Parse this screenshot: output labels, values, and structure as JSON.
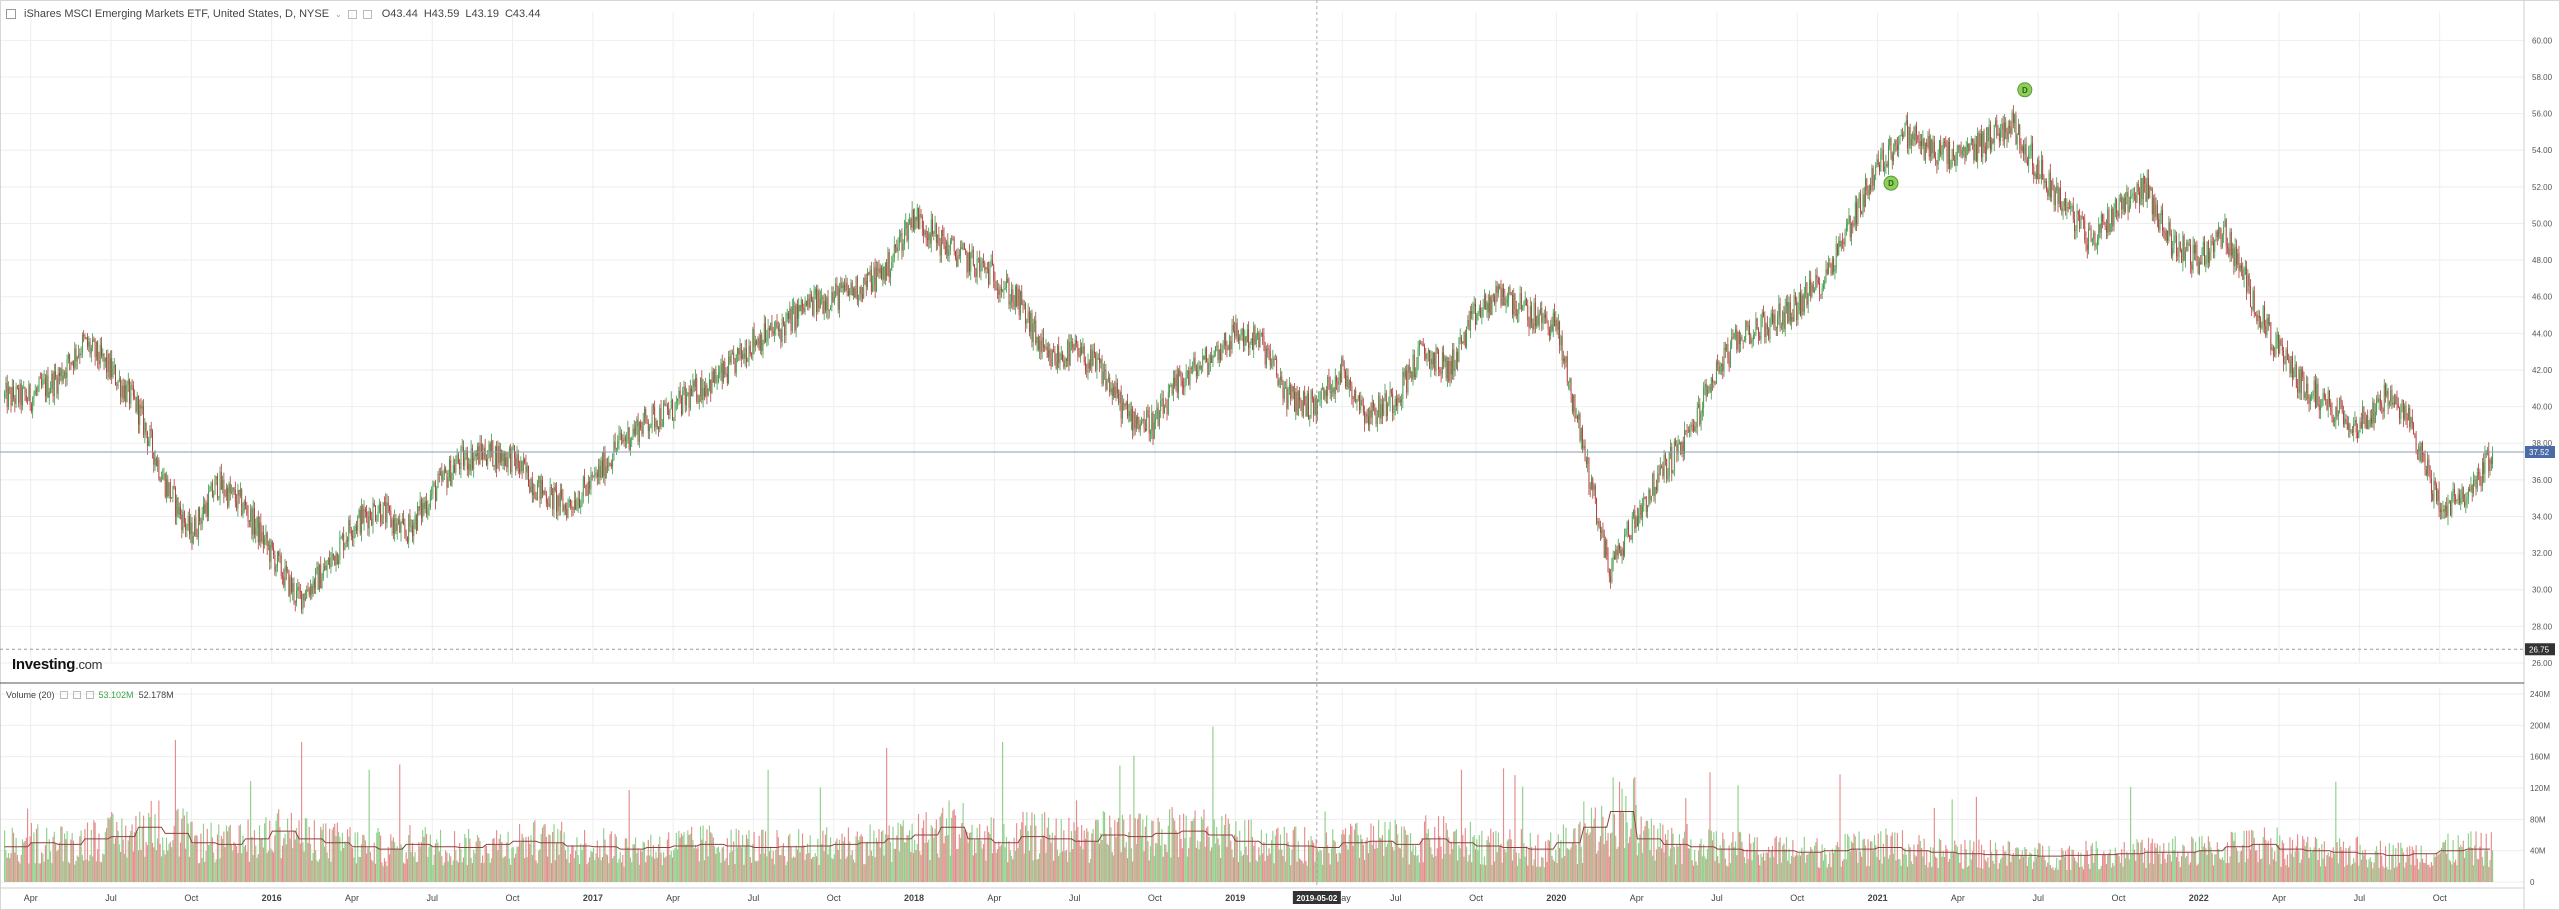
{
  "header": {
    "title": "iShares MSCI Emerging Markets ETF, United States, D, NYSE",
    "open": "O43.44",
    "high": "H43.59",
    "low": "L43.19",
    "close": "C43.44"
  },
  "volume_header": {
    "label": "Volume (20)",
    "value1": "53.102M",
    "value2": "52.178M"
  },
  "logo": {
    "brand": "Investing",
    "domain": ".com"
  },
  "price_labels": {
    "current": "37.52",
    "low_marker": "26.75"
  },
  "crosshair_date": "2019-05-02",
  "colors": {
    "up": "#3a9a46",
    "down": "#b33a3a",
    "vol_up": "#8fd08a",
    "vol_down": "#e58c8c",
    "ma": "#8e4040"
  },
  "chart_data": [
    {
      "type": "candlestick",
      "title": "iShares MSCI Emerging Markets ETF, United States, D, NYSE",
      "x_tick_labels": [
        "Apr",
        "Jul",
        "Oct",
        "2016",
        "Apr",
        "Jul",
        "Oct",
        "2017",
        "Apr",
        "Jul",
        "Oct",
        "2018",
        "Apr",
        "Jul",
        "Oct",
        "2019",
        "May",
        "Jul",
        "Oct",
        "2020",
        "Apr",
        "Jul",
        "Oct",
        "2021",
        "Apr",
        "Jul",
        "Oct",
        "2022",
        "Apr",
        "Jul",
        "Oct"
      ],
      "y_ticks": [
        "60.00",
        "58.00",
        "56.00",
        "54.00",
        "52.00",
        "50.00",
        "48.00",
        "46.00",
        "44.00",
        "42.00",
        "40.00",
        "38.00",
        "36.00",
        "34.00",
        "32.00",
        "30.00",
        "28.00",
        "26.00"
      ],
      "ylim": [
        26,
        61
      ],
      "x": [
        "2015-03",
        "2015-04",
        "2015-05",
        "2015-06",
        "2015-07",
        "2015-08",
        "2015-09",
        "2015-10",
        "2015-11",
        "2015-12",
        "2016-01",
        "2016-02",
        "2016-03",
        "2016-04",
        "2016-05",
        "2016-06",
        "2016-07",
        "2016-08",
        "2016-09",
        "2016-10",
        "2016-11",
        "2016-12",
        "2017-01",
        "2017-02",
        "2017-03",
        "2017-04",
        "2017-05",
        "2017-06",
        "2017-07",
        "2017-08",
        "2017-09",
        "2017-10",
        "2017-11",
        "2017-12",
        "2018-01",
        "2018-02",
        "2018-03",
        "2018-04",
        "2018-05",
        "2018-06",
        "2018-07",
        "2018-08",
        "2018-09",
        "2018-10",
        "2018-11",
        "2018-12",
        "2019-01",
        "2019-02",
        "2019-03",
        "2019-04",
        "2019-05",
        "2019-06",
        "2019-07",
        "2019-08",
        "2019-09",
        "2019-10",
        "2019-11",
        "2019-12",
        "2020-01",
        "2020-02",
        "2020-03",
        "2020-04",
        "2020-05",
        "2020-06",
        "2020-07",
        "2020-08",
        "2020-09",
        "2020-10",
        "2020-11",
        "2020-12",
        "2021-01",
        "2021-02",
        "2021-03",
        "2021-04",
        "2021-05",
        "2021-06",
        "2021-07",
        "2021-08",
        "2021-09",
        "2021-10",
        "2021-11",
        "2021-12",
        "2022-01",
        "2022-02",
        "2022-03",
        "2022-04",
        "2022-05",
        "2022-06",
        "2022-07",
        "2022-08",
        "2022-09",
        "2022-10",
        "2022-11"
      ],
      "close": [
        40.5,
        41.5,
        43.5,
        42.0,
        40.0,
        36.0,
        33.0,
        35.8,
        34.5,
        32.0,
        29.5,
        31.0,
        33.5,
        34.5,
        33.0,
        35.2,
        37.0,
        37.5,
        37.2,
        35.5,
        34.5,
        35.8,
        38.0,
        39.2,
        39.8,
        41.0,
        41.8,
        43.6,
        44.2,
        45.5,
        46.0,
        46.5,
        47.5,
        50.5,
        49.0,
        48.0,
        47.2,
        45.5,
        42.5,
        43.0,
        42.0,
        39.5,
        39.0,
        41.5,
        42.5,
        44.0,
        43.5,
        40.5,
        40.0,
        42.0,
        39.5,
        40.5,
        43.0,
        42.0,
        45.0,
        46.2,
        45.0,
        44.5,
        38.0,
        31.0,
        34.0,
        36.5,
        38.5,
        42.0,
        44.0,
        44.5,
        45.5,
        47.0,
        50.0,
        53.0,
        55.0,
        54.0,
        53.5,
        54.5,
        55.5,
        53.0,
        51.0,
        49.0,
        51.0,
        52.0,
        49.0,
        48.0,
        49.5,
        46.0,
        43.0,
        41.0,
        40.0,
        39.0,
        40.5,
        39.0,
        34.5,
        35.0,
        37.5
      ],
      "annotations": [
        {
          "label": "D",
          "date": "2021-01",
          "price": 52.2
        },
        {
          "label": "D",
          "date": "2021-06",
          "price": 57.3
        }
      ],
      "horizontal_lines": [
        37.52,
        26.75
      ],
      "grid": true
    },
    {
      "type": "bar",
      "title": "Volume (20)",
      "y_ticks": [
        "240M",
        "200M",
        "160M",
        "120M",
        "80M",
        "40M",
        "0"
      ],
      "ylim": [
        0,
        240
      ],
      "unit": "M",
      "moving_average_period": 20,
      "volume_monthly_avg_M": [
        45,
        50,
        48,
        55,
        58,
        70,
        62,
        50,
        48,
        55,
        65,
        55,
        50,
        45,
        42,
        48,
        45,
        44,
        48,
        52,
        50,
        46,
        45,
        42,
        44,
        46,
        48,
        46,
        44,
        45,
        46,
        48,
        50,
        55,
        60,
        70,
        55,
        50,
        58,
        55,
        52,
        60,
        58,
        62,
        65,
        60,
        52,
        48,
        46,
        44,
        50,
        52,
        48,
        55,
        50,
        46,
        44,
        42,
        50,
        70,
        90,
        55,
        48,
        45,
        42,
        40,
        40,
        38,
        40,
        42,
        44,
        40,
        38,
        36,
        35,
        34,
        33,
        34,
        35,
        36,
        38,
        38,
        40,
        45,
        48,
        42,
        40,
        38,
        36,
        34,
        36,
        40,
        42
      ],
      "grid": true
    }
  ]
}
